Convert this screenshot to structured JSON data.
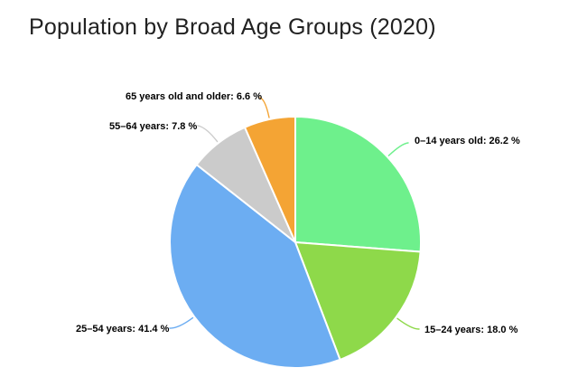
{
  "chart_data": {
    "type": "pie",
    "title": "Population by Broad Age Groups (2020)",
    "unit": "%",
    "direction": "clockwise",
    "start_angle": "12-oclock",
    "legend": "none",
    "labels_position": "outside-callouts",
    "slices": [
      {
        "name": "0–14 years old",
        "value": 26.2,
        "color": "#6EF08C",
        "label": "0–14 years old: 26.2 %"
      },
      {
        "name": "15–24 years",
        "value": 18.0,
        "color": "#8ED94A",
        "label": "15–24 years: 18.0 %"
      },
      {
        "name": "25–54 years",
        "value": 41.4,
        "color": "#6CADF2",
        "label": "25–54 years: 41.4 %"
      },
      {
        "name": "55–64 years",
        "value": 7.8,
        "color": "#CBCBCB",
        "label": "55–64 years: 7.8 %"
      },
      {
        "name": "65 years old and older",
        "value": 6.6,
        "color": "#F4A434",
        "label": "65 years old and older: 6.6 %"
      }
    ]
  }
}
